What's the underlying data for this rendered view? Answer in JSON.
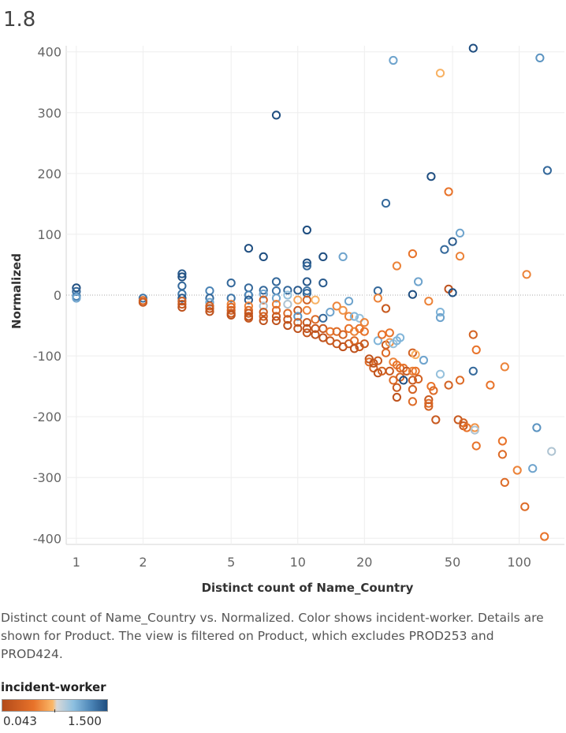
{
  "header": {
    "title": "1.8"
  },
  "caption": "Distinct count of Name_Country vs. Normalized.  Color shows incident-worker. Details are shown for Product. The view is filtered on Product, which excludes PROD253 and PROD424.",
  "legend": {
    "title": "incident-worker",
    "min_label": "0.043",
    "max_label": "1.500"
  },
  "colors": {
    "low": "#b34a1a",
    "mid_low": "#f0923a",
    "mid": "#d0d0d0",
    "mid_high": "#7fb6db",
    "high": "#1f4e80"
  },
  "chart_data": {
    "type": "scatter",
    "xlabel": "Distinct count of Name_Country",
    "ylabel": "Normalized",
    "x_scale": "log",
    "xlim": [
      0.9,
      160
    ],
    "ylim": [
      -410,
      410
    ],
    "x_ticks": [
      1,
      2,
      5,
      10,
      20,
      50,
      100
    ],
    "y_ticks": [
      400,
      300,
      200,
      100,
      0,
      -100,
      -200,
      -300,
      -400
    ],
    "grid": true,
    "zero_line": true,
    "points": [
      {
        "x": 1,
        "y": 12,
        "c": 1.0
      },
      {
        "x": 1,
        "y": 6,
        "c": 0.9
      },
      {
        "x": 1,
        "y": -2,
        "c": 0.8
      },
      {
        "x": 1,
        "y": -5,
        "c": 0.7
      },
      {
        "x": 2,
        "y": -5,
        "c": 0.85
      },
      {
        "x": 2,
        "y": -9,
        "c": 0.2
      },
      {
        "x": 2,
        "y": -12,
        "c": 0.1
      },
      {
        "x": 3,
        "y": 35,
        "c": 0.95
      },
      {
        "x": 3,
        "y": 30,
        "c": 1.0
      },
      {
        "x": 3,
        "y": 15,
        "c": 0.9
      },
      {
        "x": 3,
        "y": 2,
        "c": 0.85
      },
      {
        "x": 3,
        "y": -5,
        "c": 0.95
      },
      {
        "x": 3,
        "y": -10,
        "c": 0.15
      },
      {
        "x": 3,
        "y": -15,
        "c": 0.1
      },
      {
        "x": 3,
        "y": -20,
        "c": 0.05
      },
      {
        "x": 4,
        "y": 7,
        "c": 0.8
      },
      {
        "x": 4,
        "y": -5,
        "c": 0.9
      },
      {
        "x": 4,
        "y": -12,
        "c": 0.7
      },
      {
        "x": 4,
        "y": -18,
        "c": 0.15
      },
      {
        "x": 4,
        "y": -22,
        "c": 0.1
      },
      {
        "x": 4,
        "y": -27,
        "c": 0.05
      },
      {
        "x": 5,
        "y": 20,
        "c": 0.9
      },
      {
        "x": 5,
        "y": -5,
        "c": 0.85
      },
      {
        "x": 5,
        "y": -15,
        "c": 0.3
      },
      {
        "x": 5,
        "y": -20,
        "c": 0.2
      },
      {
        "x": 5,
        "y": -25,
        "c": 0.15
      },
      {
        "x": 5,
        "y": -30,
        "c": 0.1
      },
      {
        "x": 5,
        "y": -33,
        "c": 0.05
      },
      {
        "x": 6,
        "y": 77,
        "c": 1.0
      },
      {
        "x": 6,
        "y": 12,
        "c": 0.9
      },
      {
        "x": 6,
        "y": 0,
        "c": 0.8
      },
      {
        "x": 6,
        "y": -8,
        "c": 0.95
      },
      {
        "x": 6,
        "y": -18,
        "c": 0.3
      },
      {
        "x": 6,
        "y": -25,
        "c": 0.2
      },
      {
        "x": 6,
        "y": -30,
        "c": 0.1
      },
      {
        "x": 6,
        "y": -35,
        "c": 0.05
      },
      {
        "x": 6,
        "y": -38,
        "c": 0.08
      },
      {
        "x": 7,
        "y": 63,
        "c": 1.0
      },
      {
        "x": 7,
        "y": 8,
        "c": 0.9
      },
      {
        "x": 7,
        "y": 2,
        "c": 0.7
      },
      {
        "x": 7,
        "y": -8,
        "c": 0.15
      },
      {
        "x": 7,
        "y": -18,
        "c": 0.55
      },
      {
        "x": 7,
        "y": -28,
        "c": 0.1
      },
      {
        "x": 7,
        "y": -35,
        "c": 0.15
      },
      {
        "x": 7,
        "y": -42,
        "c": 0.05
      },
      {
        "x": 8,
        "y": 296,
        "c": 1.0
      },
      {
        "x": 8,
        "y": 22,
        "c": 0.9
      },
      {
        "x": 8,
        "y": 7,
        "c": 0.85
      },
      {
        "x": 8,
        "y": -5,
        "c": 0.7
      },
      {
        "x": 8,
        "y": -15,
        "c": 0.3
      },
      {
        "x": 8,
        "y": -25,
        "c": 0.2
      },
      {
        "x": 8,
        "y": -35,
        "c": 0.1
      },
      {
        "x": 8,
        "y": -42,
        "c": 0.05
      },
      {
        "x": 9,
        "y": 8,
        "c": 0.9
      },
      {
        "x": 9,
        "y": 0,
        "c": 0.6
      },
      {
        "x": 9,
        "y": -15,
        "c": 0.55
      },
      {
        "x": 9,
        "y": -30,
        "c": 0.2
      },
      {
        "x": 9,
        "y": -40,
        "c": 0.1
      },
      {
        "x": 9,
        "y": -50,
        "c": 0.05
      },
      {
        "x": 10,
        "y": 8,
        "c": 0.95
      },
      {
        "x": 10,
        "y": -8,
        "c": 0.4
      },
      {
        "x": 10,
        "y": -25,
        "c": 0.1
      },
      {
        "x": 10,
        "y": -35,
        "c": 0.75
      },
      {
        "x": 10,
        "y": -45,
        "c": 0.15
      },
      {
        "x": 10,
        "y": -55,
        "c": 0.05
      },
      {
        "x": 11,
        "y": 107,
        "c": 1.0
      },
      {
        "x": 11,
        "y": 53,
        "c": 1.0
      },
      {
        "x": 11,
        "y": 48,
        "c": 0.9
      },
      {
        "x": 11,
        "y": 22,
        "c": 0.95
      },
      {
        "x": 11,
        "y": 7,
        "c": 0.85
      },
      {
        "x": 11,
        "y": 3,
        "c": 0.9
      },
      {
        "x": 11,
        "y": -8,
        "c": 0.15
      },
      {
        "x": 11,
        "y": -25,
        "c": 0.3
      },
      {
        "x": 11,
        "y": -45,
        "c": 0.1
      },
      {
        "x": 11,
        "y": -55,
        "c": 0.05
      },
      {
        "x": 11,
        "y": -62,
        "c": 0.08
      },
      {
        "x": 12,
        "y": -8,
        "c": 0.45
      },
      {
        "x": 12,
        "y": -40,
        "c": 0.2
      },
      {
        "x": 12,
        "y": -55,
        "c": 0.1
      },
      {
        "x": 12,
        "y": -65,
        "c": 0.05
      },
      {
        "x": 13,
        "y": 63,
        "c": 1.0
      },
      {
        "x": 13,
        "y": 20,
        "c": 0.95
      },
      {
        "x": 13,
        "y": -38,
        "c": 0.9
      },
      {
        "x": 13,
        "y": -55,
        "c": 0.1
      },
      {
        "x": 13,
        "y": -70,
        "c": 0.05
      },
      {
        "x": 14,
        "y": -28,
        "c": 0.7
      },
      {
        "x": 14,
        "y": -60,
        "c": 0.25
      },
      {
        "x": 14,
        "y": -75,
        "c": 0.1
      },
      {
        "x": 15,
        "y": -18,
        "c": 0.3
      },
      {
        "x": 15,
        "y": -60,
        "c": 0.2
      },
      {
        "x": 15,
        "y": -80,
        "c": 0.1
      },
      {
        "x": 16,
        "y": 63,
        "c": 0.7
      },
      {
        "x": 16,
        "y": -25,
        "c": 0.35
      },
      {
        "x": 16,
        "y": -65,
        "c": 0.15
      },
      {
        "x": 16,
        "y": -85,
        "c": 0.05
      },
      {
        "x": 17,
        "y": -10,
        "c": 0.7
      },
      {
        "x": 17,
        "y": -35,
        "c": 0.3
      },
      {
        "x": 17,
        "y": -55,
        "c": 0.25
      },
      {
        "x": 17,
        "y": -80,
        "c": 0.1
      },
      {
        "x": 18,
        "y": -35,
        "c": 0.65
      },
      {
        "x": 18,
        "y": -60,
        "c": 0.3
      },
      {
        "x": 18,
        "y": -75,
        "c": 0.2
      },
      {
        "x": 18,
        "y": -88,
        "c": 0.05
      },
      {
        "x": 19,
        "y": -38,
        "c": 0.6
      },
      {
        "x": 19,
        "y": -55,
        "c": 0.25
      },
      {
        "x": 19,
        "y": -85,
        "c": 0.1
      },
      {
        "x": 20,
        "y": -45,
        "c": 0.3
      },
      {
        "x": 20,
        "y": -60,
        "c": 0.25
      },
      {
        "x": 20,
        "y": -80,
        "c": 0.1
      },
      {
        "x": 21,
        "y": -105,
        "c": 0.05
      },
      {
        "x": 21,
        "y": -110,
        "c": 0.2
      },
      {
        "x": 22,
        "y": -120,
        "c": 0.15
      },
      {
        "x": 22,
        "y": -112,
        "c": 0.05
      },
      {
        "x": 23,
        "y": 7,
        "c": 0.9
      },
      {
        "x": 23,
        "y": -5,
        "c": 0.3
      },
      {
        "x": 23,
        "y": -75,
        "c": 0.65
      },
      {
        "x": 23,
        "y": -108,
        "c": 0.1
      },
      {
        "x": 23,
        "y": -128,
        "c": 0.05
      },
      {
        "x": 24,
        "y": -65,
        "c": 0.25
      },
      {
        "x": 24,
        "y": -125,
        "c": 0.15
      },
      {
        "x": 25,
        "y": 151,
        "c": 0.9
      },
      {
        "x": 25,
        "y": -22,
        "c": 0.1
      },
      {
        "x": 25,
        "y": -82,
        "c": 0.1
      },
      {
        "x": 25,
        "y": -95,
        "c": 0.2
      },
      {
        "x": 26,
        "y": -62,
        "c": 0.25
      },
      {
        "x": 26,
        "y": -78,
        "c": 0.35
      },
      {
        "x": 26,
        "y": -125,
        "c": 0.1
      },
      {
        "x": 27,
        "y": 386,
        "c": 0.7
      },
      {
        "x": 27,
        "y": -110,
        "c": 0.3
      },
      {
        "x": 27,
        "y": -140,
        "c": 0.2
      },
      {
        "x": 27,
        "y": -80,
        "c": 0.6
      },
      {
        "x": 28,
        "y": 48,
        "c": 0.3
      },
      {
        "x": 28,
        "y": -75,
        "c": 0.65
      },
      {
        "x": 28,
        "y": -115,
        "c": 0.25
      },
      {
        "x": 28,
        "y": -152,
        "c": 0.1
      },
      {
        "x": 28,
        "y": -168,
        "c": 0.05
      },
      {
        "x": 29,
        "y": -70,
        "c": 0.65
      },
      {
        "x": 29,
        "y": -120,
        "c": 0.2
      },
      {
        "x": 29,
        "y": -135,
        "c": 0.15
      },
      {
        "x": 30,
        "y": -140,
        "c": 1.0
      },
      {
        "x": 30,
        "y": -120,
        "c": 0.25
      },
      {
        "x": 31,
        "y": -125,
        "c": 0.55
      },
      {
        "x": 31,
        "y": -125,
        "c": 0.1
      },
      {
        "x": 33,
        "y": 68,
        "c": 0.25
      },
      {
        "x": 33,
        "y": 1,
        "c": 1.0
      },
      {
        "x": 33,
        "y": -95,
        "c": 0.15
      },
      {
        "x": 33,
        "y": -125,
        "c": 0.3
      },
      {
        "x": 33,
        "y": -140,
        "c": 0.1
      },
      {
        "x": 33,
        "y": -155,
        "c": 0.15
      },
      {
        "x": 33,
        "y": -175,
        "c": 0.2
      },
      {
        "x": 34,
        "y": -125,
        "c": 0.25
      },
      {
        "x": 34,
        "y": -98,
        "c": 0.45
      },
      {
        "x": 35,
        "y": 22,
        "c": 0.7
      },
      {
        "x": 35,
        "y": -138,
        "c": 0.15
      },
      {
        "x": 37,
        "y": -107,
        "c": 0.7
      },
      {
        "x": 39,
        "y": -10,
        "c": 0.3
      },
      {
        "x": 39,
        "y": -172,
        "c": 0.1
      },
      {
        "x": 39,
        "y": -178,
        "c": 0.2
      },
      {
        "x": 39,
        "y": -183,
        "c": 0.15
      },
      {
        "x": 40,
        "y": 195,
        "c": 1.0
      },
      {
        "x": 40,
        "y": -150,
        "c": 0.25
      },
      {
        "x": 41,
        "y": -157,
        "c": 0.2
      },
      {
        "x": 42,
        "y": -205,
        "c": 0.1
      },
      {
        "x": 44,
        "y": 365,
        "c": 0.45
      },
      {
        "x": 44,
        "y": -28,
        "c": 0.65
      },
      {
        "x": 44,
        "y": -37,
        "c": 0.7
      },
      {
        "x": 44,
        "y": -130,
        "c": 0.6
      },
      {
        "x": 46,
        "y": 75,
        "c": 0.9
      },
      {
        "x": 48,
        "y": 170,
        "c": 0.25
      },
      {
        "x": 48,
        "y": 10,
        "c": 0.05
      },
      {
        "x": 48,
        "y": -148,
        "c": 0.15
      },
      {
        "x": 50,
        "y": 88,
        "c": 0.95
      },
      {
        "x": 50,
        "y": 4,
        "c": 1.0
      },
      {
        "x": 53,
        "y": -205,
        "c": 0.1
      },
      {
        "x": 54,
        "y": 64,
        "c": 0.3
      },
      {
        "x": 54,
        "y": 102,
        "c": 0.7
      },
      {
        "x": 54,
        "y": -140,
        "c": 0.2
      },
      {
        "x": 56,
        "y": -210,
        "c": 0.15
      },
      {
        "x": 56,
        "y": -215,
        "c": 0.1
      },
      {
        "x": 58,
        "y": -218,
        "c": 0.25
      },
      {
        "x": 62,
        "y": 406,
        "c": 1.0
      },
      {
        "x": 62,
        "y": -65,
        "c": 0.15
      },
      {
        "x": 62,
        "y": -125,
        "c": 0.9
      },
      {
        "x": 63,
        "y": -218,
        "c": 0.35
      },
      {
        "x": 63,
        "y": -222,
        "c": 0.55
      },
      {
        "x": 64,
        "y": -90,
        "c": 0.25
      },
      {
        "x": 64,
        "y": -248,
        "c": 0.25
      },
      {
        "x": 74,
        "y": -148,
        "c": 0.25
      },
      {
        "x": 84,
        "y": -240,
        "c": 0.25
      },
      {
        "x": 84,
        "y": -262,
        "c": 0.2
      },
      {
        "x": 86,
        "y": -118,
        "c": 0.3
      },
      {
        "x": 86,
        "y": -308,
        "c": 0.2
      },
      {
        "x": 98,
        "y": -288,
        "c": 0.3
      },
      {
        "x": 106,
        "y": -348,
        "c": 0.2
      },
      {
        "x": 108,
        "y": 34,
        "c": 0.3
      },
      {
        "x": 115,
        "y": -285,
        "c": 0.7
      },
      {
        "x": 120,
        "y": -218,
        "c": 0.75
      },
      {
        "x": 124,
        "y": 390,
        "c": 0.75
      },
      {
        "x": 130,
        "y": -397,
        "c": 0.25
      },
      {
        "x": 134,
        "y": 205,
        "c": 0.9
      },
      {
        "x": 140,
        "y": -257,
        "c": 0.55
      }
    ]
  }
}
